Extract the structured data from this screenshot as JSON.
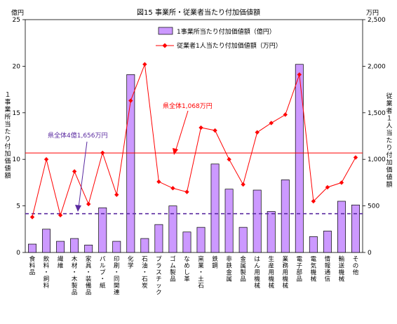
{
  "chart_data": {
    "type": "bar",
    "title": "図15 事業所・従業者当たり付加価値額",
    "left_unit": "億円",
    "right_unit": "万円",
    "ylabel": "１事業所当たり付加価値額",
    "y2label": "従業者１人当たり付加価値額",
    "ylim": [
      0,
      25
    ],
    "y2lim": [
      0,
      2500
    ],
    "yticks": [
      "0",
      "5",
      "10",
      "15",
      "20",
      "25"
    ],
    "y2ticks": [
      "0",
      "500",
      "1,000",
      "1,500",
      "2,000",
      "2,500"
    ],
    "grid": false,
    "legend_position": "top-center",
    "categories": [
      "食料品",
      "飲料・飼料",
      "繊維",
      "木材・木製品",
      "家具・装備品",
      "パルプ・紙",
      "印刷・同関連",
      "化学",
      "石油・石炭",
      "プラスチック",
      "ゴム製品",
      "なめし革",
      "窯業・土石",
      "鉄鋼",
      "非鉄金属",
      "金属製品",
      "はん用機械",
      "生産用機械",
      "業務用機械",
      "電子部品",
      "電気機械",
      "情報通信",
      "輸送機械",
      "その他"
    ],
    "series": [
      {
        "name": "1事業所当たり付加価値額（億円）",
        "type": "bar",
        "axis": "left",
        "color": "#cc99ff",
        "values": [
          0.9,
          2.5,
          1.2,
          1.5,
          0.8,
          4.8,
          1.2,
          19.1,
          1.5,
          3.0,
          5.0,
          2.2,
          2.7,
          9.5,
          6.8,
          2.7,
          6.7,
          4.4,
          7.8,
          20.2,
          1.7,
          2.3,
          5.5,
          5.1
        ]
      },
      {
        "name": "従業者1人当たり付加価値額（万円）",
        "type": "line",
        "axis": "right",
        "color": "#ff0000",
        "values": [
          380,
          1000,
          400,
          870,
          520,
          1070,
          620,
          1630,
          2020,
          760,
          690,
          650,
          1340,
          1310,
          1000,
          730,
          1290,
          1390,
          1480,
          1910,
          550,
          700,
          750,
          1020
        ]
      }
    ],
    "reference_lines": [
      {
        "axis": "right",
        "value": 1068,
        "color": "#ff0000",
        "style": "solid",
        "label": "県全体1,068万円"
      },
      {
        "axis": "left",
        "value": 4.1656,
        "color": "#5a2aa0",
        "style": "dashed",
        "label": "県全体4億1,656万円"
      }
    ]
  }
}
